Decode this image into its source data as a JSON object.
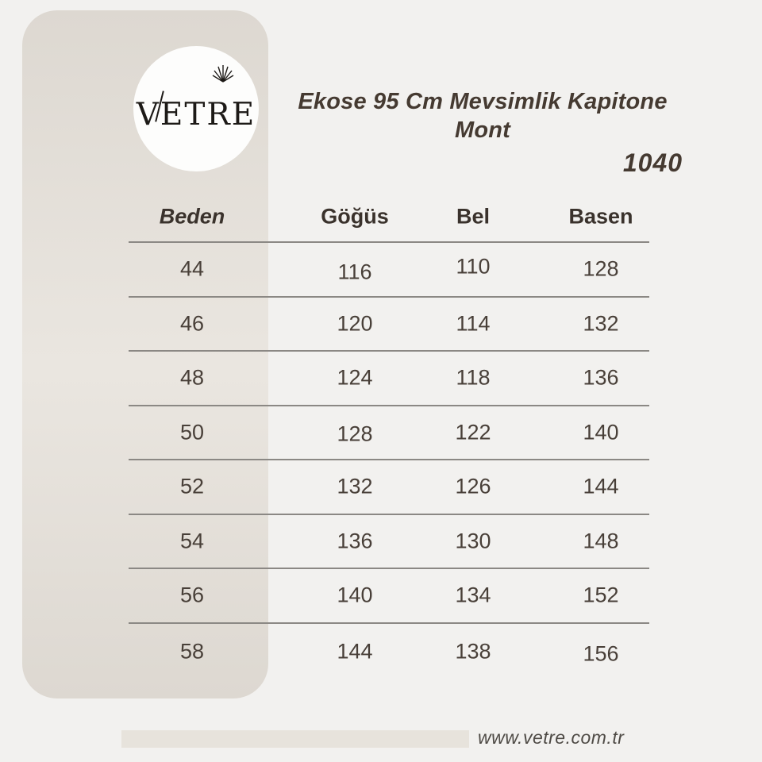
{
  "brand": {
    "logo_text": "VETRE"
  },
  "header": {
    "product_title": "Ekose 95 Cm Mevsimlik Kapitone Mont",
    "product_code": "1040"
  },
  "size_chart": {
    "columns": [
      "Beden",
      "Göğüs",
      "Bel",
      "Basen"
    ],
    "rows": [
      [
        "44",
        "116",
        "110",
        "128"
      ],
      [
        "46",
        "120",
        "114",
        "132"
      ],
      [
        "48",
        "124",
        "118",
        "136"
      ],
      [
        "50",
        "128",
        "122",
        "140"
      ],
      [
        "52",
        "132",
        "126",
        "144"
      ],
      [
        "54",
        "136",
        "130",
        "148"
      ],
      [
        "56",
        "140",
        "134",
        "152"
      ],
      [
        "58",
        "144",
        "138",
        "156"
      ]
    ]
  },
  "footer": {
    "website": "www.vetre.com.tr"
  },
  "colors": {
    "page_background": "#f2f1ef",
    "sidebar_band": "#ddd8d1",
    "logo_circle": "#fdfdfc",
    "title_text": "#453a31",
    "heading_text": "#3a322c",
    "table_text": "#483f38",
    "row_line": "#8b8884",
    "footer_bar": "#e7e3dc",
    "footer_text": "#4e4a45"
  }
}
